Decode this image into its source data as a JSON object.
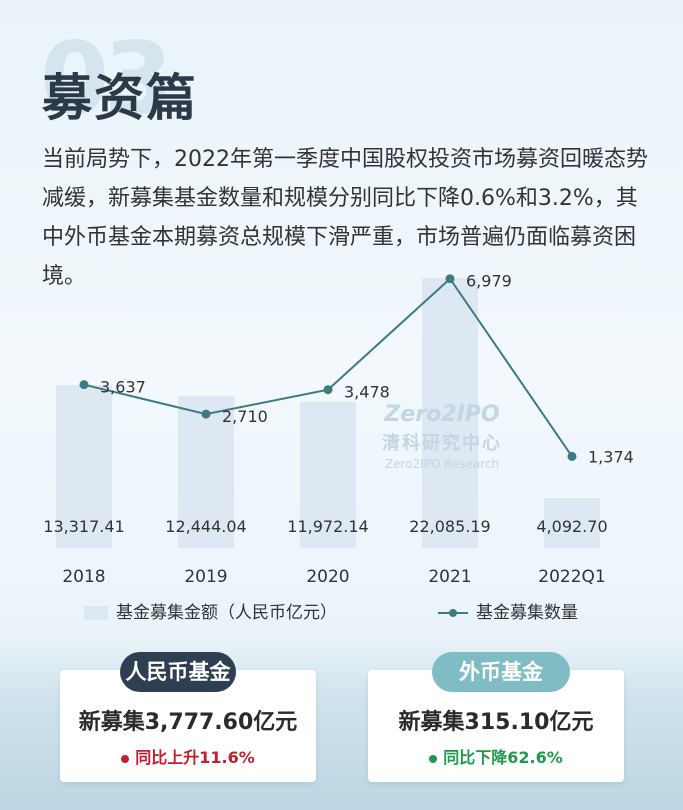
{
  "header": {
    "bg_number": "03",
    "title": "募资篇"
  },
  "intro": "当前局势下，2022年第一季度中国股权投资市场募资回暖态势减缓，新募集基金数量和规模分别同比下降0.6%和3.2%，其中外币基金本期募资总规模下滑严重，市场普遍仍面临募资困境。",
  "watermark": {
    "logo": "Zero2IPO",
    "cn": "清科研究中心",
    "en": "Zero2IPO Research"
  },
  "chart_data": {
    "type": "bar",
    "categories": [
      "2018",
      "2019",
      "2020",
      "2021",
      "2022Q1"
    ],
    "series": [
      {
        "name": "基金募集金额（人民币亿元）",
        "type": "bar",
        "values": [
          13317.41,
          12444.04,
          11972.14,
          22085.19,
          4092.7
        ],
        "labels": [
          "13,317.41",
          "12,444.04",
          "11,972.14",
          "22,085.19",
          "4,092.70"
        ],
        "color": "#dde8f2"
      },
      {
        "name": "基金募集数量",
        "type": "line",
        "values": [
          3637,
          2710,
          3478,
          6979,
          1374
        ],
        "labels": [
          "3,637",
          "2,710",
          "3,478",
          "6,979",
          "1,374"
        ],
        "color": "#3f7a82"
      }
    ],
    "legend": {
      "bar_label": "基金募集金额（人民币亿元）",
      "line_label": "基金募集数量"
    },
    "grid": false,
    "legend_position": "bottom"
  },
  "cards": [
    {
      "pill": "人民币基金",
      "main": "新募集3,777.60亿元",
      "sub": "同比上升11.6%",
      "sub_color": "#c0202e",
      "pill_color": "#2f3f52"
    },
    {
      "pill": "外币基金",
      "main": "新募集315.10亿元",
      "sub": "同比下降62.6%",
      "sub_color": "#1f9a4a",
      "pill_color": "#7fbcc4"
    }
  ]
}
